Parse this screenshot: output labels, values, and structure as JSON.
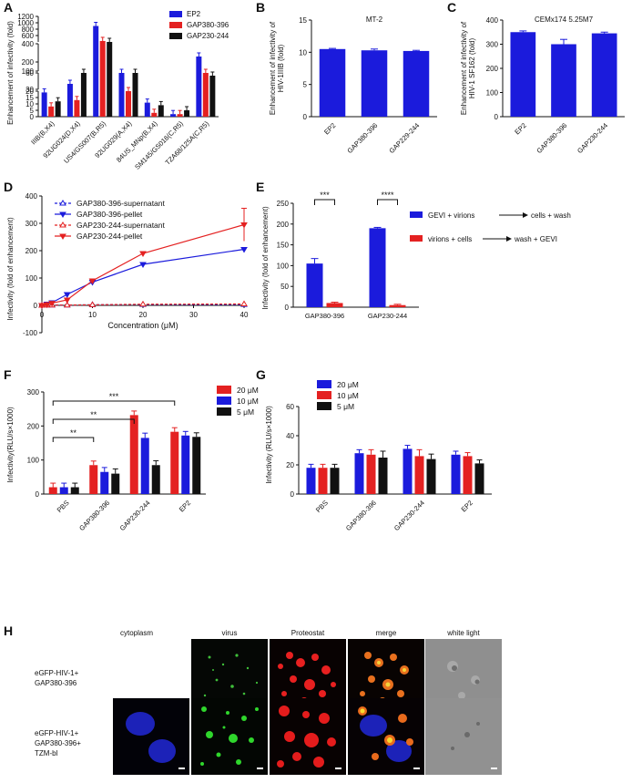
{
  "figure": {
    "panel_letters": [
      "A",
      "B",
      "C",
      "D",
      "E",
      "F",
      "G",
      "H"
    ],
    "panel_h": {
      "columns": [
        "cytoplasm",
        "virus",
        "Proteostat",
        "merge",
        "white light"
      ],
      "rows": [
        [
          "eGFP-HIV-1+",
          "GAP380-396"
        ],
        [
          "eGFP-HIV-1+",
          "GAP380-396+",
          "TZM-bl"
        ]
      ]
    }
  },
  "chart_data": [
    {
      "id": "A",
      "type": "bar",
      "ylabel": "Enhancement of infectivity (fold)",
      "categories": [
        "IIIB(B,X4)",
        "92UG024(D,X4)",
        "US4/GS007(B,R5)",
        "92UG029(A,X4)",
        "84US_MNp(B,X4)",
        "SM145/GS016(C,R5)",
        "TZA68/125A(C,R5)"
      ],
      "ticks": [
        "0",
        "5",
        "10",
        "15",
        "20",
        "30",
        "60",
        "100",
        "200",
        "400",
        "600",
        "800",
        "1000",
        "1200"
      ],
      "series": [
        {
          "name": "EP2",
          "color": "#1b1bdc",
          "values": [
            19,
            40,
            900,
            80,
            11,
            2,
            260
          ]
        },
        {
          "name": "GAP380-396",
          "color": "#e42121",
          "values": [
            8,
            13,
            430,
            20,
            3,
            2,
            70
          ]
        },
        {
          "name": "GAP230-244",
          "color": "#111111",
          "values": [
            12,
            90,
            400,
            70,
            9,
            5,
            55
          ]
        }
      ]
    },
    {
      "id": "B",
      "type": "bar",
      "title": "MT-2",
      "ylabel": [
        "Enhancement of infectivity of",
        "HIV-1IIIB (fold)"
      ],
      "categories": [
        "EP2",
        "GAP380-396",
        "GAP229-244"
      ],
      "values": [
        10.5,
        10.3,
        10.2
      ],
      "errors": [
        0.1,
        0.2,
        0.1
      ],
      "ylim": [
        0,
        15
      ],
      "ticks": [
        "0",
        "5",
        "10",
        "15"
      ],
      "color": "#1b1bdc"
    },
    {
      "id": "C",
      "type": "bar",
      "title": "CEMx174 5.25M7",
      "ylabel": [
        "Enhancement of infectivity of",
        "HIV-1 SF162 (fold)"
      ],
      "categories": [
        "EP2",
        "GAP380-396",
        "GAP230-244"
      ],
      "values": [
        350,
        300,
        345
      ],
      "errors": [
        5,
        20,
        5
      ],
      "ylim": [
        0,
        400
      ],
      "ticks": [
        "0",
        "100",
        "200",
        "300",
        "400"
      ],
      "color": "#1b1bdc"
    },
    {
      "id": "D",
      "type": "line",
      "xlabel": "Concentration (μM)",
      "ylabel": "Infectivity (fold of enhancement)",
      "x": [
        0,
        1,
        2,
        5,
        10,
        20,
        40
      ],
      "xlim": [
        0,
        40
      ],
      "ylim": [
        -100,
        400
      ],
      "xticks": [
        "0",
        "10",
        "20",
        "30",
        "40"
      ],
      "yticks": [
        "-100",
        "0",
        "100",
        "200",
        "300",
        "400"
      ],
      "series": [
        {
          "name": "GAP380-396-supernatant",
          "color": "#1b1bdc",
          "dashed": true,
          "marker": "tri-open",
          "values": [
            0,
            1,
            1,
            1,
            2,
            3,
            3
          ]
        },
        {
          "name": "GAP380-396-pellet",
          "color": "#1b1bdc",
          "dashed": false,
          "marker": "tri-down",
          "values": [
            0,
            5,
            10,
            40,
            85,
            150,
            205
          ]
        },
        {
          "name": "GAP230-244-supernatant",
          "color": "#e42121",
          "dashed": true,
          "marker": "tri-open",
          "values": [
            0,
            1,
            1,
            1,
            2,
            4,
            5
          ]
        },
        {
          "name": "GAP230-244-pellet",
          "color": "#e42121",
          "dashed": false,
          "marker": "tri-down",
          "values": [
            0,
            3,
            8,
            20,
            90,
            190,
            295
          ]
        }
      ],
      "errors": [
        0,
        0,
        0,
        0,
        0,
        15,
        60
      ]
    },
    {
      "id": "E",
      "type": "bar",
      "ylabel": "Infectivity (fold of enhancement)",
      "categories": [
        "GAP380-396",
        "GAP230-244"
      ],
      "ylim": [
        0,
        250
      ],
      "ticks": [
        "0",
        "50",
        "100",
        "150",
        "200",
        "250"
      ],
      "series": [
        {
          "name": "GEVI + virions",
          "arrow_to": "cells + wash",
          "color": "#1b1bdc",
          "values": [
            105,
            190
          ]
        },
        {
          "name": "virions + cells",
          "arrow_to": "wash + GEVI",
          "color": "#e42121",
          "values": [
            10,
            5
          ]
        }
      ],
      "significance": [
        "***",
        "****"
      ]
    },
    {
      "id": "F",
      "type": "bar",
      "ylabel": "Infectivity(RLU/s×1000)",
      "categories": [
        "PBS",
        "GAP380-396",
        "GAP230-244",
        "EP2"
      ],
      "ylim": [
        0,
        300
      ],
      "ticks": [
        "0",
        "100",
        "200",
        "300"
      ],
      "series": [
        {
          "name": "20 μM",
          "color": "#e42121",
          "values": [
            20,
            85,
            232,
            183
          ]
        },
        {
          "name": "10 μM",
          "color": "#1b1bdc",
          "values": [
            20,
            65,
            165,
            172
          ]
        },
        {
          "name": "5 μM",
          "color": "#111111",
          "values": [
            20,
            60,
            85,
            168
          ]
        }
      ],
      "significance": [
        "**",
        "**",
        "***"
      ]
    },
    {
      "id": "G",
      "type": "bar",
      "ylabel": "Infectivity (RLU/s×1000)",
      "categories": [
        "PBS",
        "GAP380-396",
        "GAP230-244",
        "EP2"
      ],
      "ylim": [
        0,
        60
      ],
      "ticks": [
        "0",
        "20",
        "40",
        "60"
      ],
      "series": [
        {
          "name": "20 μM",
          "color": "#1b1bdc",
          "values": [
            18,
            28,
            31,
            27
          ]
        },
        {
          "name": "10 μM",
          "color": "#e42121",
          "values": [
            18,
            27,
            26,
            26
          ]
        },
        {
          "name": "5 μM",
          "color": "#111111",
          "values": [
            18,
            25,
            24,
            21
          ]
        }
      ]
    }
  ]
}
